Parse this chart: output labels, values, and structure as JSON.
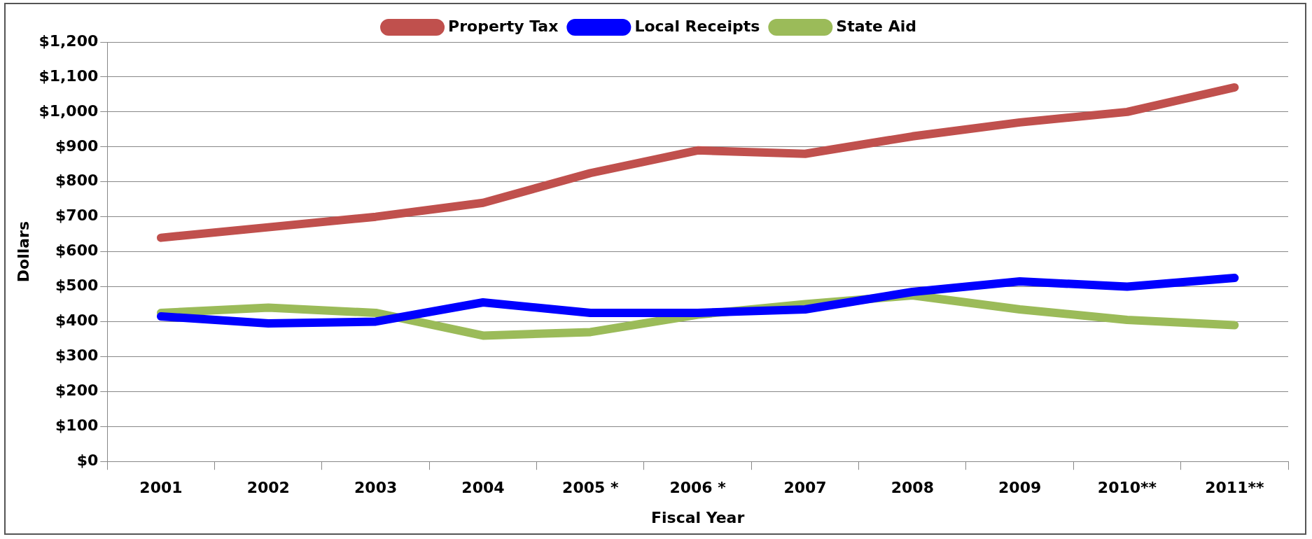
{
  "chart_data": {
    "type": "line",
    "xlabel": "Fiscal Year",
    "ylabel": "Dollars",
    "categories": [
      "2001",
      "2002",
      "2003",
      "2004",
      "2005 *",
      "2006 *",
      "2007",
      "2008",
      "2009",
      "2010**",
      "2011**"
    ],
    "series": [
      {
        "name": "Property Tax",
        "color": "#c0504d",
        "values": [
          640,
          670,
          700,
          740,
          825,
          890,
          880,
          930,
          970,
          1000,
          1070
        ]
      },
      {
        "name": "Local Receipts",
        "color": "#0000ff",
        "values": [
          415,
          395,
          400,
          455,
          425,
          425,
          435,
          485,
          515,
          500,
          525
        ]
      },
      {
        "name": "State Aid",
        "color": "#9bbb59",
        "values": [
          425,
          440,
          425,
          360,
          370,
          420,
          450,
          475,
          435,
          405,
          390
        ]
      }
    ],
    "ylim": [
      0,
      1200
    ],
    "yticks": [
      {
        "value": 0,
        "label": "$0"
      },
      {
        "value": 100,
        "label": "$100"
      },
      {
        "value": 200,
        "label": "$200"
      },
      {
        "value": 300,
        "label": "$300"
      },
      {
        "value": 400,
        "label": "$400"
      },
      {
        "value": 500,
        "label": "$500"
      },
      {
        "value": 600,
        "label": "$600"
      },
      {
        "value": 700,
        "label": "$700"
      },
      {
        "value": 800,
        "label": "$800"
      },
      {
        "value": 900,
        "label": "$900"
      },
      {
        "value": 1000,
        "label": "$1,000"
      },
      {
        "value": 1100,
        "label": "$1,100"
      },
      {
        "value": 1200,
        "label": "$1,200"
      }
    ],
    "grid": "y",
    "legend": "top",
    "marker": "none",
    "line_style": "solid"
  }
}
